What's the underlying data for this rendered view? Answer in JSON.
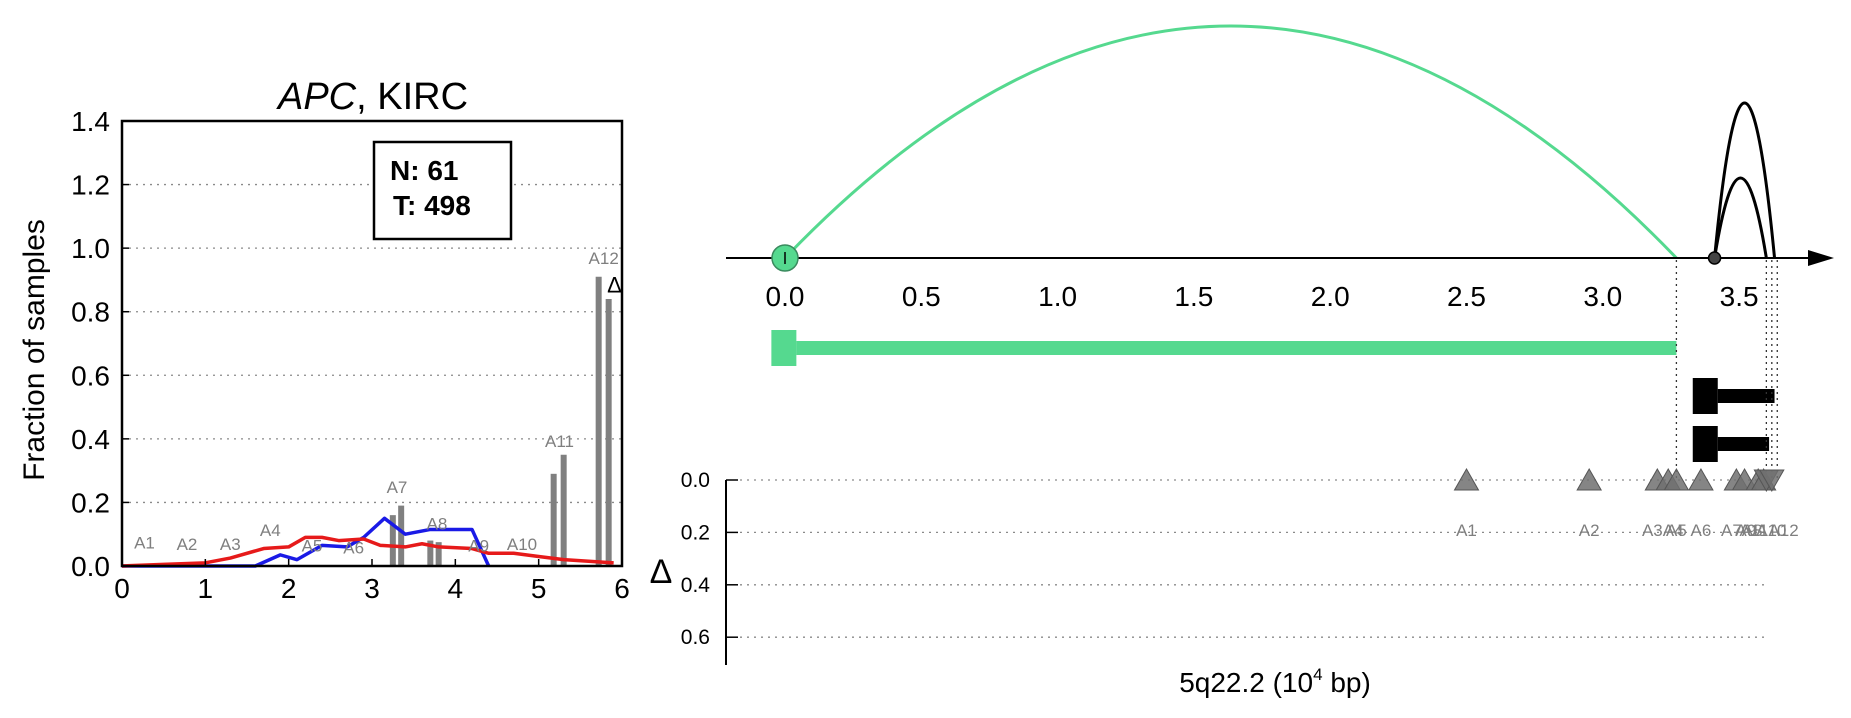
{
  "chart_data": [
    {
      "type": "line",
      "title_gene": "APC",
      "title_rest": ", KIRC",
      "ylabel": "Fraction of samples",
      "xlim": [
        0,
        6
      ],
      "ylim": [
        0,
        1.4
      ],
      "xticks": [
        "0",
        "1",
        "2",
        "3",
        "4",
        "5",
        "6"
      ],
      "yticks": [
        "0.0",
        "0.2",
        "0.4",
        "0.6",
        "0.8",
        "1.0",
        "1.2",
        "1.4"
      ],
      "grid": "horizontal dotted",
      "legend_box": {
        "n_label": "N: 61",
        "t_label": "T: 498"
      },
      "colors": {
        "normal": "#1a1ae6",
        "tumor": "#e61a1a",
        "bars": "#808080"
      },
      "delta_marker": "Δ",
      "series": [
        {
          "name": "",
          "color": "#1a1ae6",
          "x": [
            0,
            1.6,
            1.9,
            2.1,
            2.4,
            2.7,
            2.9,
            3.15,
            3.4,
            3.7,
            4.2,
            4.4
          ],
          "y": [
            0,
            0,
            0.035,
            0.02,
            0.065,
            0.06,
            0.09,
            0.15,
            0.1,
            0.115,
            0.115,
            0
          ]
        },
        {
          "name": "",
          "color": "#e61a1a",
          "x": [
            0,
            0.5,
            1.0,
            1.3,
            1.7,
            2.0,
            2.2,
            2.4,
            2.6,
            2.9,
            3.1,
            3.4,
            3.6,
            3.8,
            4.2,
            4.4,
            4.7,
            5.0,
            5.3,
            5.6,
            5.9
          ],
          "y": [
            0,
            0.005,
            0.01,
            0.025,
            0.055,
            0.06,
            0.09,
            0.09,
            0.08,
            0.085,
            0.065,
            0.06,
            0.07,
            0.06,
            0.055,
            0.04,
            0.04,
            0.03,
            0.02,
            0.015,
            0.01
          ]
        }
      ],
      "bars": [
        {
          "x": 5.18,
          "value": 0.29
        },
        {
          "x": 5.3,
          "value": 0.35
        },
        {
          "x": 5.72,
          "value": 0.91
        },
        {
          "x": 5.84,
          "value": 0.84
        },
        {
          "x": 3.25,
          "value": 0.16
        },
        {
          "x": 3.35,
          "value": 0.19
        },
        {
          "x": 3.7,
          "value": 0.08
        },
        {
          "x": 3.8,
          "value": 0.075
        }
      ],
      "exon_labels": [
        {
          "text": "A1",
          "x": 0.27,
          "y": 0.055
        },
        {
          "text": "A2",
          "x": 0.78,
          "y": 0.05
        },
        {
          "text": "A3",
          "x": 1.3,
          "y": 0.05
        },
        {
          "text": "A4",
          "x": 1.78,
          "y": 0.095
        },
        {
          "text": "A5",
          "x": 2.28,
          "y": 0.045
        },
        {
          "text": "A6",
          "x": 2.78,
          "y": 0.04
        },
        {
          "text": "A7",
          "x": 3.3,
          "y": 0.23
        },
        {
          "text": "A8",
          "x": 3.78,
          "y": 0.115
        },
        {
          "text": "A9",
          "x": 4.28,
          "y": 0.045
        },
        {
          "text": "A10",
          "x": 4.8,
          "y": 0.05
        },
        {
          "text": "A11",
          "x": 5.25,
          "y": 0.375
        },
        {
          "text": "A12",
          "x": 5.78,
          "y": 0.95
        }
      ]
    },
    {
      "type": "scatter",
      "xlabel_main": "5q22.2 (10",
      "xlabel_sup": "4",
      "xlabel_tail": " bp)",
      "ylabel": "Δ",
      "xlim": [
        -0.2,
        3.85
      ],
      "xticks": [
        "0.0",
        "0.5",
        "1.0",
        "1.5",
        "2.0",
        "2.5",
        "3.0",
        "3.5"
      ],
      "ylim": [
        0.7,
        -0.05
      ],
      "yticks": [
        "0.0",
        "0.2",
        "0.4",
        "0.6"
      ],
      "colors": {
        "long_transcript": "#55d98f",
        "short_transcripts": "#000000",
        "markers": "#707070"
      },
      "arcs": [
        {
          "from": 0.0,
          "to": 3.27,
          "height": 1.0,
          "color": "#55d98f"
        },
        {
          "from": 3.41,
          "to": 3.6,
          "height": 0.55,
          "color": "#000000"
        },
        {
          "from": 3.41,
          "to": 3.63,
          "height": 0.9,
          "color": "#000000"
        }
      ],
      "transcripts": [
        {
          "start": -0.05,
          "end": 3.27,
          "row": 0,
          "color": "#55d98f"
        },
        {
          "start": 3.33,
          "end": 3.63,
          "row": 1,
          "color": "#000000"
        },
        {
          "start": 3.33,
          "end": 3.61,
          "row": 2,
          "color": "#000000"
        }
      ],
      "markers": [
        {
          "label": "A1",
          "x": 2.5,
          "y": 0.0,
          "shape": "up"
        },
        {
          "label": "A2",
          "x": 2.95,
          "y": 0.0,
          "shape": "up"
        },
        {
          "label": "A3",
          "x": 3.2,
          "y": 0.0,
          "shape": "up"
        },
        {
          "label": "A4",
          "x": 3.24,
          "y": 0.0,
          "shape": "up"
        },
        {
          "label": "A5",
          "x": 3.27,
          "y": 0.0,
          "shape": "up"
        },
        {
          "label": "A6",
          "x": 3.36,
          "y": 0.0,
          "shape": "up"
        },
        {
          "label": "A7",
          "x": 3.49,
          "y": 0.0,
          "shape": "up"
        },
        {
          "label": "A8",
          "x": 3.52,
          "y": 0.0,
          "shape": "up"
        },
        {
          "label": "A9",
          "x": 3.57,
          "y": 0.0,
          "shape": "up"
        },
        {
          "label": "A10",
          "x": 3.59,
          "y": 0.0,
          "shape": "up"
        },
        {
          "label": "A11",
          "x": 3.6,
          "y": 0.0,
          "shape": "down"
        },
        {
          "label": "A12",
          "x": 3.62,
          "y": 0.0,
          "shape": "down"
        }
      ],
      "marker_label_text": [
        {
          "text": "A1",
          "x": 2.5
        },
        {
          "text": "A2",
          "x": 2.95
        },
        {
          "text": "A3A4",
          "x": 3.22
        },
        {
          "text": "A5",
          "x": 3.27
        },
        {
          "text": "A6",
          "x": 3.36
        },
        {
          "text": "A7A8",
          "x": 3.51
        },
        {
          "text": "A9A10",
          "x": 3.58
        },
        {
          "text": "A11A12",
          "x": 3.61
        }
      ],
      "start_circle_x": 0.0,
      "junction_x": 3.41
    }
  ]
}
